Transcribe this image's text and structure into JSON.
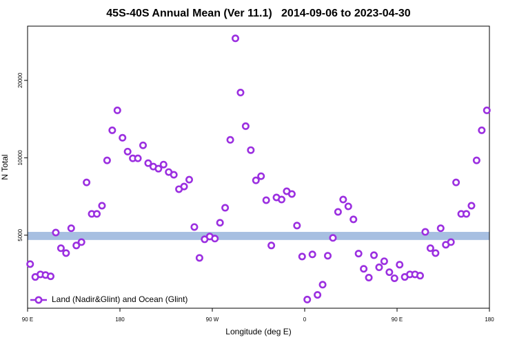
{
  "chart_data": {
    "type": "scatter",
    "title": "45S-40S Annual Mean (Ver 11.1)   2014-09-06 to 2023-04-30",
    "x_label": "Longitude (deg E)",
    "y_label": "N Total",
    "log_y": true,
    "xlim": [
      90,
      540
    ],
    "ylim": [
      2600,
      32500
    ],
    "xticks": [
      {
        "value": 90,
        "label": "90 E"
      },
      {
        "value": 180,
        "label": "180"
      },
      {
        "value": 270,
        "label": "90 W"
      },
      {
        "value": 360,
        "label": "0"
      },
      {
        "value": 450,
        "label": "90 E"
      },
      {
        "value": 540,
        "label": "180"
      }
    ],
    "yticks": [
      5000,
      10000,
      20000
    ],
    "legend_position": "lower left",
    "band": {
      "range": [
        4790,
        5150
      ],
      "color": "#a7bfe1"
    },
    "series": [
      {
        "name": "Land (Nadir&Glint) and Ocean (Glint)",
        "color": "#9b2fe0",
        "x": [
          92.5,
          97.5,
          102.5,
          107.5,
          112.5,
          117.5,
          122.5,
          127.5,
          132.5,
          137.5,
          142.5,
          147.5,
          152.5,
          157.5,
          162.5,
          167.5,
          172.5,
          177.5,
          182.5,
          187.5,
          192.5,
          197.5,
          202.5,
          207.5,
          212.5,
          217.5,
          222.5,
          227.5,
          232.5,
          237.5,
          242.5,
          247.5,
          252.5,
          257.5,
          262.5,
          267.5,
          272.5,
          277.5,
          282.5,
          287.5,
          292.5,
          297.5,
          302.5,
          307.5,
          312.5,
          317.5,
          322.5,
          327.5,
          332.5,
          337.5,
          342.5,
          347.5,
          352.5,
          357.5,
          362.5,
          367.5,
          372.5,
          377.5,
          382.5,
          387.5,
          392.5,
          397.5,
          402.5,
          407.5,
          412.5,
          417.5,
          422.5,
          427.5,
          432.5,
          437.5,
          442.5,
          447.5,
          452.5,
          457.5,
          462.5,
          467.5,
          472.5,
          477.5,
          482.5,
          487.5,
          492.5,
          497.5,
          502.5,
          507.5,
          512.5,
          517.5,
          522.5,
          527.5,
          532.5,
          537.5
        ],
        "values": [
          3860,
          3440,
          3520,
          3500,
          3460,
          5120,
          4450,
          4260,
          5320,
          4560,
          4700,
          8020,
          6050,
          6050,
          6510,
          9770,
          12790,
          15290,
          11960,
          10570,
          9950,
          9950,
          11180,
          9530,
          9240,
          9070,
          9410,
          8800,
          8590,
          7550,
          7730,
          8220,
          5380,
          4080,
          4820,
          4940,
          4850,
          5590,
          6390,
          11740,
          29130,
          17930,
          13270,
          10710,
          8170,
          8480,
          6840,
          4560,
          7010,
          6880,
          7410,
          7230,
          5450,
          4130,
          2810,
          4210,
          2930,
          3210,
          4160,
          4880,
          6160,
          6880,
          6470,
          5760,
          4240,
          3700,
          3420,
          4180,
          3750,
          3960,
          3590,
          3400,
          3840,
          3440,
          3520,
          3520,
          3480,
          5150,
          4450,
          4260,
          5320,
          4590,
          4700,
          8020,
          6050,
          6050,
          6510,
          9770,
          12790,
          15290
        ]
      }
    ]
  }
}
